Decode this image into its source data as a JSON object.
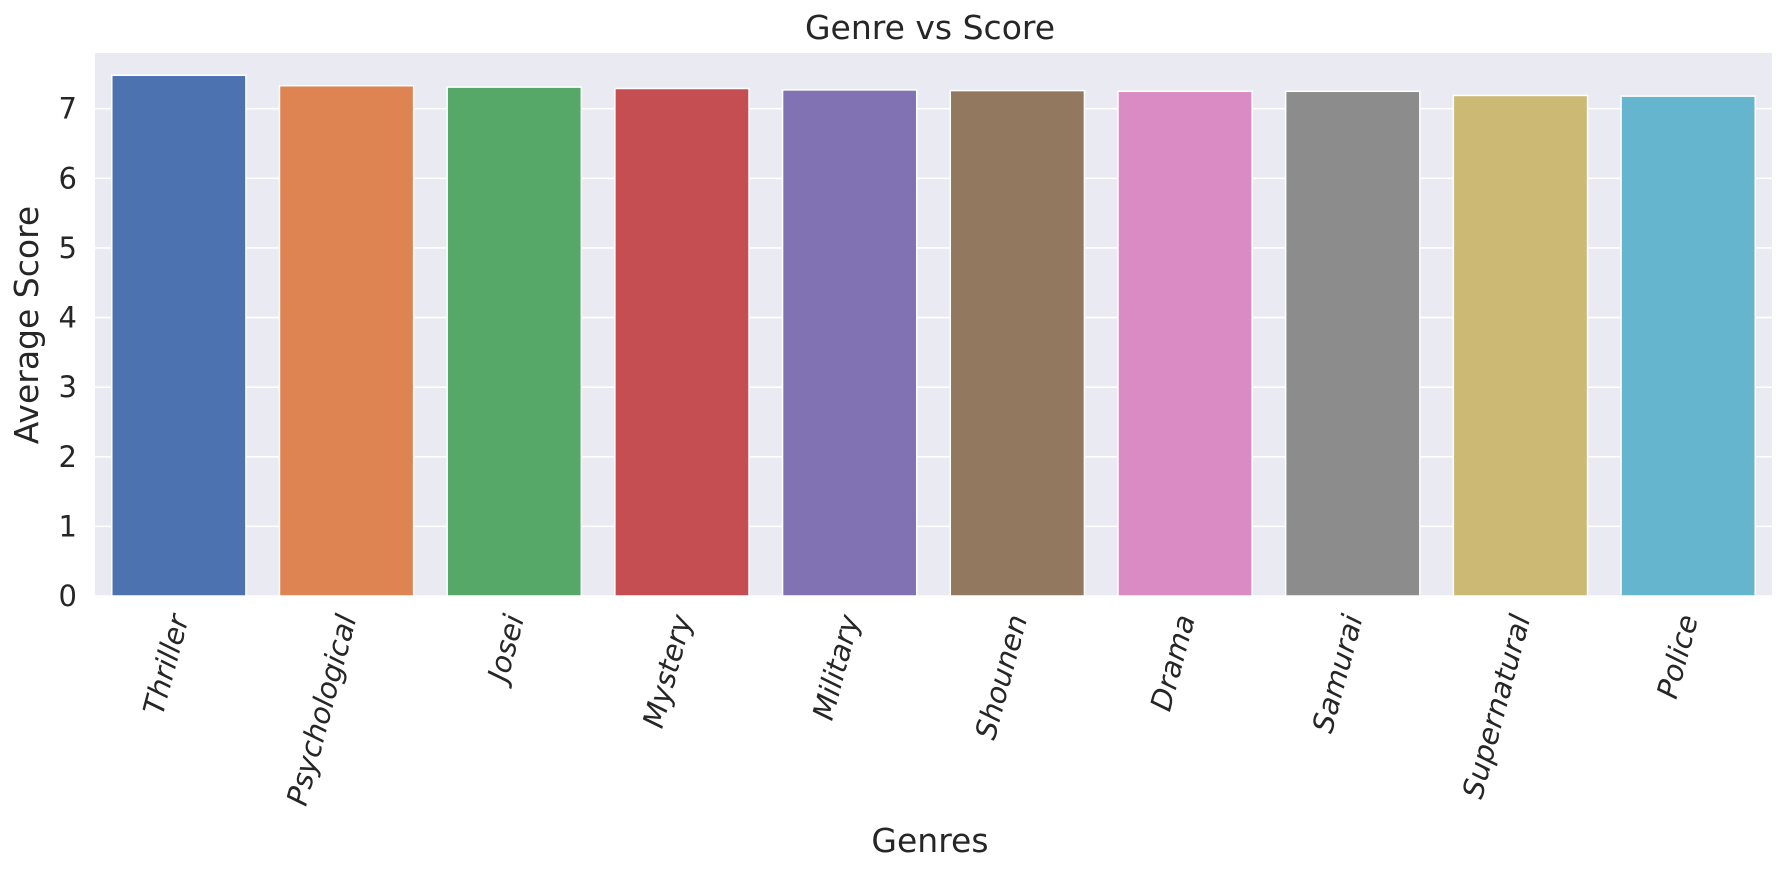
{
  "chart_data": {
    "type": "bar",
    "title": "Genre vs Score",
    "xlabel": "Genres",
    "ylabel": "Average Score",
    "categories": [
      "Thriller",
      "Psychological",
      "Josei",
      "Mystery",
      "Military",
      "Shounen",
      "Drama",
      "Samurai",
      "Supernatural",
      "Police"
    ],
    "values": [
      7.48,
      7.33,
      7.31,
      7.29,
      7.27,
      7.26,
      7.25,
      7.25,
      7.19,
      7.18
    ],
    "colors": [
      "#4c72b0",
      "#dd8452",
      "#55a868",
      "#c44e52",
      "#8172b3",
      "#937860",
      "#da8bc3",
      "#8c8c8c",
      "#ccb974",
      "#64b5cd"
    ],
    "ylim": [
      0,
      7.8
    ],
    "yticks": [
      "0",
      "1",
      "2",
      "3",
      "4",
      "5",
      "6",
      "7"
    ],
    "grid": true,
    "background": "#eaeaf2"
  }
}
